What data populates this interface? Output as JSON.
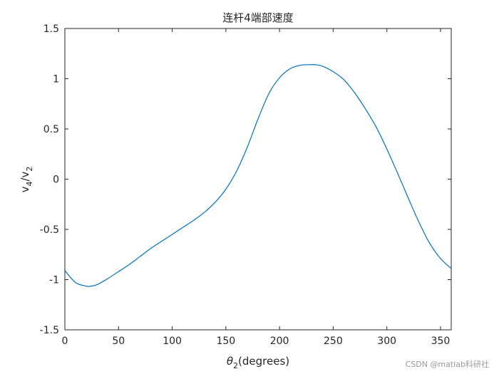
{
  "chart_data": {
    "type": "line",
    "title": "连杆4端部速度",
    "xlabel": {
      "base": "θ",
      "sub": "2",
      "rest": "(degrees)"
    },
    "ylabel": {
      "a": "v",
      "a_sub": "4",
      "slash": "/v",
      "b_sub": "2"
    },
    "xlim": [
      0,
      360
    ],
    "ylim": [
      -1.5,
      1.5
    ],
    "xticks": [
      0,
      50,
      100,
      150,
      200,
      250,
      300,
      350
    ],
    "yticks": [
      -1.5,
      -1,
      -0.5,
      0,
      0.5,
      1,
      1.5
    ],
    "grid": false,
    "series": [
      {
        "color": "#0072BD",
        "x": [
          0,
          10,
          20,
          23,
          30,
          40,
          50,
          60,
          70,
          80,
          90,
          100,
          110,
          120,
          130,
          140,
          150,
          160,
          170,
          180,
          190,
          200,
          210,
          220,
          230,
          233,
          240,
          250,
          260,
          270,
          280,
          290,
          300,
          310,
          320,
          330,
          340,
          350,
          360
        ],
        "y": [
          -0.91,
          -1.03,
          -1.065,
          -1.067,
          -1.05,
          -0.99,
          -0.92,
          -0.85,
          -0.77,
          -0.69,
          -0.62,
          -0.55,
          -0.48,
          -0.41,
          -0.33,
          -0.23,
          -0.1,
          0.08,
          0.32,
          0.6,
          0.85,
          1.01,
          1.1,
          1.135,
          1.14,
          1.14,
          1.125,
          1.07,
          0.99,
          0.86,
          0.7,
          0.52,
          0.3,
          0.06,
          -0.19,
          -0.43,
          -0.64,
          -0.79,
          -0.89
        ]
      }
    ]
  },
  "watermark": "CSDN @matlab科研社"
}
